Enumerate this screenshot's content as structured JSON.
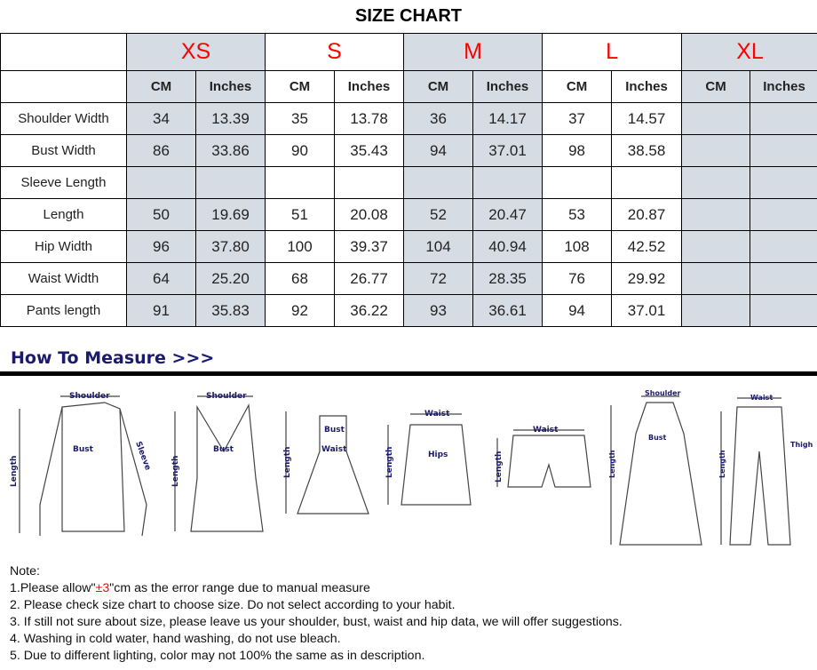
{
  "title": "SIZE CHART",
  "sizes": [
    "XS",
    "S",
    "M",
    "L",
    "XL"
  ],
  "units": [
    "CM",
    "Inches"
  ],
  "rows": [
    {
      "label": "Shoulder Width",
      "values": [
        "34",
        "13.39",
        "35",
        "13.78",
        "36",
        "14.17",
        "37",
        "14.57",
        "",
        ""
      ]
    },
    {
      "label": "Bust Width",
      "values": [
        "86",
        "33.86",
        "90",
        "35.43",
        "94",
        "37.01",
        "98",
        "38.58",
        "",
        ""
      ]
    },
    {
      "label": "Sleeve Length",
      "values": [
        "",
        "",
        "",
        "",
        "",
        "",
        "",
        "",
        "",
        ""
      ]
    },
    {
      "label": "Length",
      "values": [
        "50",
        "19.69",
        "51",
        "20.08",
        "52",
        "20.47",
        "53",
        "20.87",
        "",
        ""
      ]
    },
    {
      "label": "Hip Width",
      "values": [
        "96",
        "37.80",
        "100",
        "39.37",
        "104",
        "40.94",
        "108",
        "42.52",
        "",
        ""
      ]
    },
    {
      "label": "Waist Width",
      "values": [
        "64",
        "25.20",
        "68",
        "26.77",
        "72",
        "28.35",
        "76",
        "29.92",
        "",
        ""
      ]
    },
    {
      "label": "Pants length",
      "values": [
        "91",
        "35.83",
        "92",
        "36.22",
        "93",
        "36.61",
        "94",
        "37.01",
        "",
        ""
      ]
    }
  ],
  "how_to_measure": "How To Measure >>>",
  "diagram_labels": {
    "shoulder": "Shoulder",
    "bust": "Bust",
    "sleeve": "Sleeve",
    "length": "Length",
    "waist": "Waist",
    "hips": "Hips",
    "thigh": "Thigh"
  },
  "notes": {
    "heading": "Note:",
    "n1_pre": "1.Please allow\"",
    "n1_red": "±3",
    "n1_post": "\"cm as the error range due to manual measure",
    "n2": "2. Please check size chart to choose size. Do not select according to your habit.",
    "n3": "3. If still not sure about size, please leave us your shoulder, bust, waist and hip data, we will offer suggestions.",
    "n4": "4. Washing in cold water, hand washing, do not use bleach.",
    "n5": "5. Due to different lighting, color may not 100% the same as in description."
  },
  "colors": {
    "size_label": "#ff0000",
    "shaded": "#d6dce4",
    "heading": "#1a1a6e"
  }
}
